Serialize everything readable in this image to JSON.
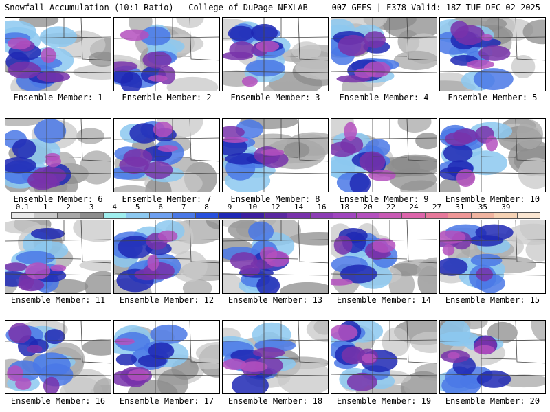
{
  "header": {
    "title_left": "Snowfall Accumulation (10:1 Ratio) | College of DuPage NEXLAB",
    "title_right": "00Z GEFS | F378 Valid: 18Z TUE DEC 02 2025"
  },
  "members": [
    {
      "label": "Ensemble Member: 1"
    },
    {
      "label": "Ensemble Member: 2"
    },
    {
      "label": "Ensemble Member: 3"
    },
    {
      "label": "Ensemble Member: 4"
    },
    {
      "label": "Ensemble Member: 5"
    },
    {
      "label": "Ensemble Member: 6"
    },
    {
      "label": "Ensemble Member: 7"
    },
    {
      "label": "Ensemble Member: 8"
    },
    {
      "label": "Ensemble Member: 9"
    },
    {
      "label": "Ensemble Member: 10"
    },
    {
      "label": "Ensemble Member: 11"
    },
    {
      "label": "Ensemble Member: 12"
    },
    {
      "label": "Ensemble Member: 13"
    },
    {
      "label": "Ensemble Member: 14"
    },
    {
      "label": "Ensemble Member: 15"
    },
    {
      "label": "Ensemble Member: 16"
    },
    {
      "label": "Ensemble Member: 17"
    },
    {
      "label": "Ensemble Member: 18"
    },
    {
      "label": "Ensemble Member: 19"
    },
    {
      "label": "Ensemble Member: 20"
    }
  ],
  "colorbar": {
    "ticks": [
      "0.1",
      "1",
      "2",
      "3",
      "4",
      "5",
      "6",
      "7",
      "8",
      "9",
      "10",
      "12",
      "14",
      "16",
      "18",
      "20",
      "22",
      "24",
      "27",
      "31",
      "35",
      "39"
    ],
    "colors": [
      "#e8e8e8",
      "#c8c8c8",
      "#a8a8a8",
      "#8c8c8c",
      "#9feeee",
      "#8cc8f0",
      "#6ea0f0",
      "#4a78e6",
      "#2850dc",
      "#1e28b4",
      "#3c1ea0",
      "#5a28a0",
      "#7832aa",
      "#8c3cb4",
      "#a046be",
      "#b450be",
      "#c85ab4",
      "#dc64aa",
      "#e6789a",
      "#ee9696",
      "#f0b4a0",
      "#f5d2b4",
      "#fae6d2"
    ]
  }
}
